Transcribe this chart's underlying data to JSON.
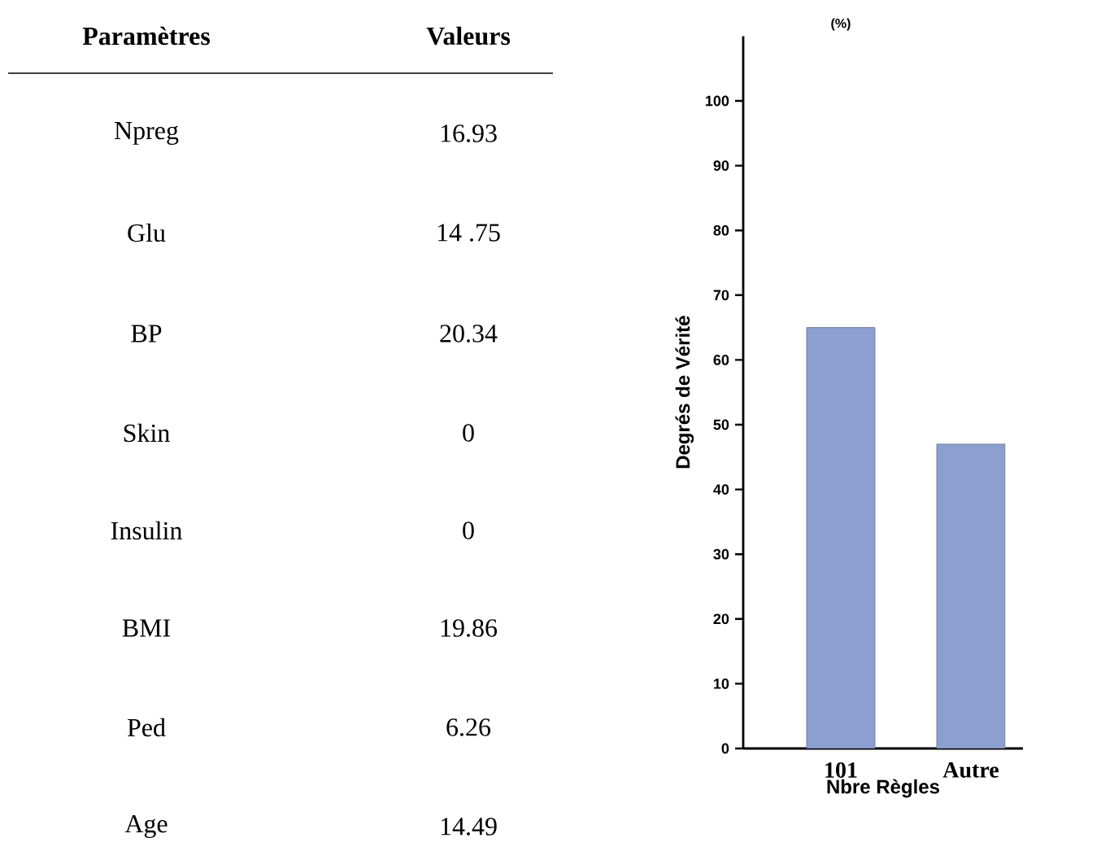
{
  "chart_data": [
    {
      "type": "other",
      "annotations": [
        "Paramètres",
        "Valeurs",
        "Npreg",
        "16.93",
        "Glu",
        "14 .75",
        "BP",
        "20.34",
        "Skin",
        "0",
        "Insulin",
        "0",
        "BMI",
        "19.86",
        "Ped",
        "6.26",
        "Age",
        "14.49"
      ]
    },
    {
      "type": "bar",
      "categories": [
        "101",
        "Autre"
      ],
      "values": [
        65,
        47
      ],
      "color": "#8c9fd1",
      "ylim": [
        0,
        110
      ],
      "yticks": [
        0,
        10,
        20,
        30,
        40,
        50,
        60,
        70,
        80,
        90,
        100
      ],
      "ylabel": "Degrés de Vérité",
      "xlabel": "Nbre Règles",
      "annotations": [
        "(%)"
      ]
    }
  ]
}
